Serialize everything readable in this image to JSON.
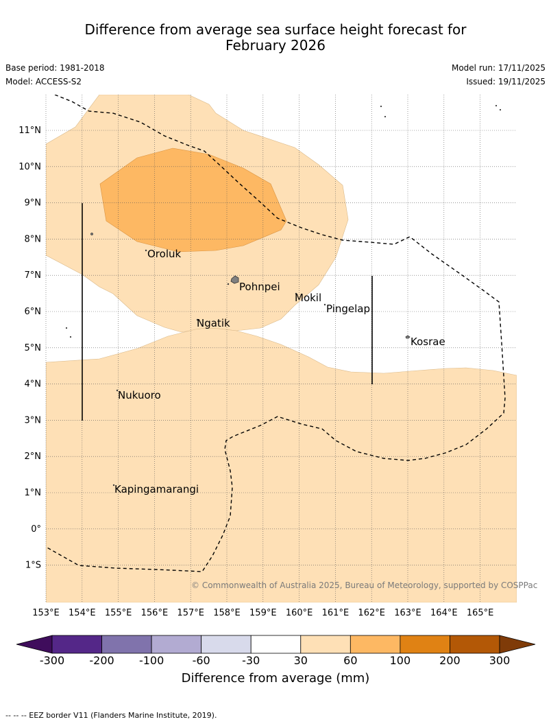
{
  "title_line1": "Difference from average sea surface height forecast for",
  "title_line2": "February 2026",
  "base_period": "Base period: 1981-2018",
  "model": "Model: ACCESS-S2",
  "model_run": "Model run: 17/11/2025",
  "issued": "Issued: 19/11/2025",
  "lat_labels": [
    "11°N",
    "10°N",
    "9°N",
    "8°N",
    "7°N",
    "6°N",
    "5°N",
    "4°N",
    "3°N",
    "2°N",
    "1°N",
    "0°",
    "1°S"
  ],
  "lon_labels": [
    "153°E",
    "154°E",
    "155°E",
    "156°E",
    "157°E",
    "158°E",
    "159°E",
    "160°E",
    "161°E",
    "162°E",
    "163°E",
    "164°E",
    "165°E"
  ],
  "places": {
    "oroluk": "Oroluk",
    "pohnpei": "Pohnpei",
    "mokil": "Mokil",
    "pingelap": "Pingelap",
    "ngatik": "Ngatik",
    "kosrae": "Kosrae",
    "nukuoro": "Nukuoro",
    "kapinga": "Kapingamarangi"
  },
  "copyright": "© Commonwealth of Australia 2025, Bureau of Meteorology, supported by COSPPac",
  "colorbar": {
    "ticks": [
      "-300",
      "-200",
      "-100",
      "-60",
      "-30",
      "30",
      "60",
      "100",
      "200",
      "300"
    ],
    "colors": [
      "#3f0d5c",
      "#542788",
      "#8073ac",
      "#b2abd2",
      "#d8daeb",
      "#ffffff",
      "#fee0b6",
      "#fdb863",
      "#e08214",
      "#b35806",
      "#7f3b08"
    ],
    "title": "Difference from average (mm)"
  },
  "footer": "--  --  -- EEZ border V11 (Flanders Marine Institute, 2019)."
}
